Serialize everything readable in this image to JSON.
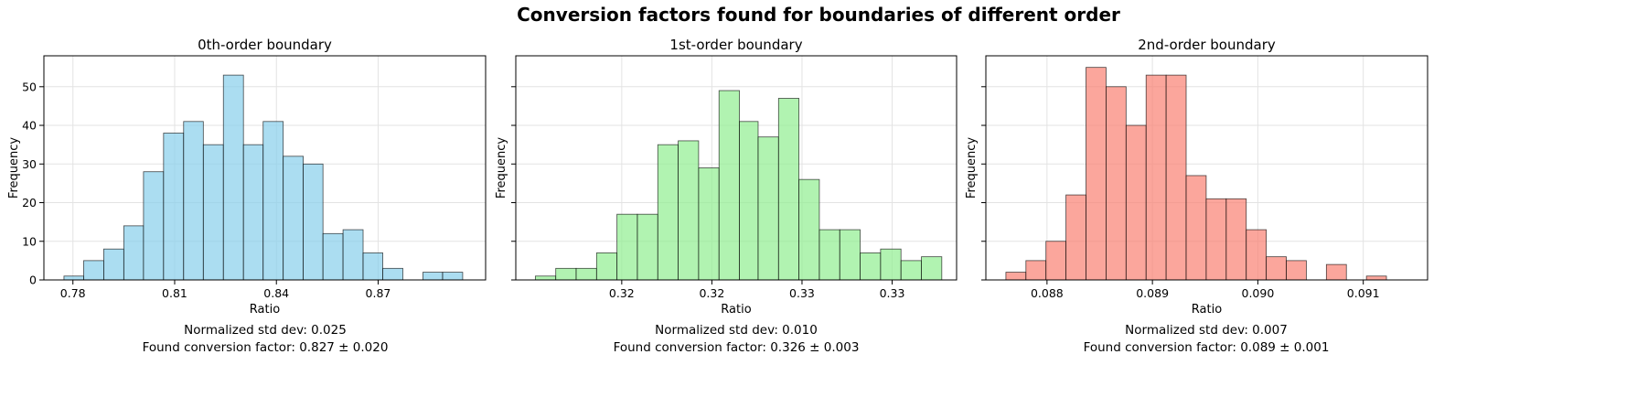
{
  "title": "Conversion factors found for boundaries of different order",
  "colors": {
    "panel_0": "#87ceeb",
    "panel_1": "#90ee90",
    "panel_2": "#fa8072",
    "edge": "#000000"
  },
  "chart_data": [
    {
      "type": "bar",
      "title": "0th-order boundary",
      "xlabel": "Ratio",
      "ylabel": "Frequency",
      "xlim": [
        0.7735,
        0.8968
      ],
      "ylim": [
        0,
        58
      ],
      "xticks": [
        0.7816,
        0.81,
        0.8384,
        0.8668
      ],
      "xtick_labels": [
        "0.78",
        "0.81",
        "0.84",
        "0.87"
      ],
      "yticks": [
        0,
        10,
        20,
        30,
        40,
        50
      ],
      "grid": true,
      "bin_edges": [
        0.7791,
        0.7846,
        0.7902,
        0.7958,
        0.8013,
        0.8069,
        0.8125,
        0.818,
        0.8236,
        0.8292,
        0.8347,
        0.8403,
        0.8459,
        0.8514,
        0.857,
        0.8626,
        0.8681,
        0.8737,
        0.8793,
        0.8848,
        0.8904
      ],
      "counts": [
        1,
        5,
        8,
        14,
        28,
        38,
        41,
        35,
        53,
        35,
        41,
        32,
        30,
        12,
        13,
        7,
        3,
        0,
        2,
        2
      ],
      "annotation": [
        "Normalized std dev: 0.025",
        "Found conversion factor: 0.827 ± 0.020"
      ]
    },
    {
      "type": "bar",
      "title": "1st-order boundary",
      "xlabel": "Ratio",
      "ylabel": "Frequency",
      "xlim": [
        0.31295,
        0.33887
      ],
      "ylim": [
        0,
        58
      ],
      "xticks": [
        0.31918,
        0.32448,
        0.32978,
        0.33508
      ],
      "xtick_labels": [
        "0.32",
        "0.32",
        "0.33",
        "0.33"
      ],
      "yticks": [
        0,
        10,
        20,
        30,
        40,
        50
      ],
      "grid": true,
      "bin_edges": [
        0.3141,
        0.3153,
        0.3165,
        0.3177,
        0.3189,
        0.3201,
        0.3213,
        0.3225,
        0.3237,
        0.3249,
        0.3261,
        0.3272,
        0.3284,
        0.3296,
        0.3308,
        0.332,
        0.3332,
        0.3344,
        0.3356,
        0.3368,
        0.338
      ],
      "counts": [
        1,
        3,
        3,
        7,
        17,
        17,
        35,
        36,
        29,
        49,
        41,
        37,
        47,
        26,
        13,
        13,
        7,
        8,
        5,
        6
      ],
      "annotation": [
        "Normalized std dev: 0.010",
        "Found conversion factor: 0.326 ± 0.003"
      ]
    },
    {
      "type": "bar",
      "title": "2nd-order boundary",
      "xlabel": "Ratio",
      "ylabel": "Frequency",
      "xlim": [
        0.08742,
        0.09161
      ],
      "ylim": [
        0,
        58
      ],
      "xticks": [
        0.088,
        0.089,
        0.09,
        0.091
      ],
      "xtick_labels": [
        "0.088",
        "0.089",
        "0.090",
        "0.091"
      ],
      "yticks": [
        0,
        10,
        20,
        30,
        40,
        50
      ],
      "grid": true,
      "bin_edges": [
        0.08761,
        0.0878,
        0.08799,
        0.08818,
        0.08837,
        0.08856,
        0.08875,
        0.08894,
        0.08913,
        0.08932,
        0.08951,
        0.0897,
        0.08989,
        0.09008,
        0.09027,
        0.09046,
        0.09065,
        0.09084,
        0.09103,
        0.09122,
        0.09142
      ],
      "counts": [
        2,
        5,
        10,
        22,
        55,
        50,
        40,
        53,
        53,
        27,
        21,
        21,
        13,
        6,
        5,
        0,
        4,
        0,
        1,
        0
      ],
      "annotation": [
        "Normalized std dev: 0.007",
        "Found conversion factor: 0.089 ± 0.001"
      ]
    }
  ]
}
